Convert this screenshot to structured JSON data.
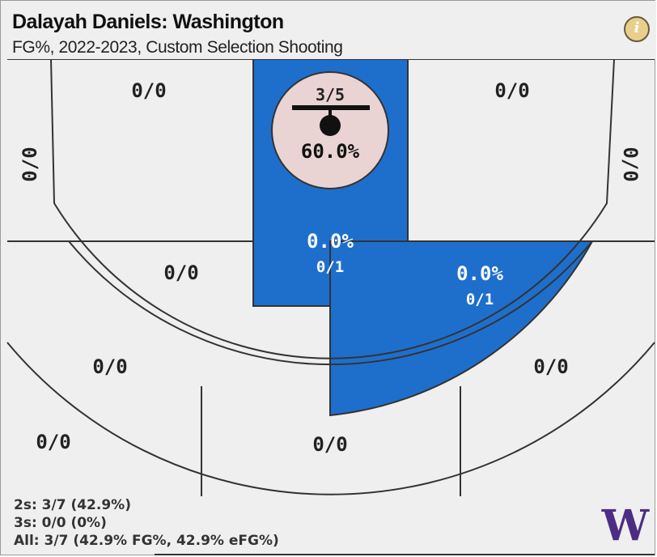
{
  "header": {
    "title": "Dalayah Daniels: Washington",
    "subtitle": "FG%, 2022-2023, Custom Selection Shooting",
    "info_icon": "info-icon"
  },
  "colors": {
    "background": "#efefef",
    "zone_hot": "#1e6fcc",
    "rim_circle": "#e9d3d3",
    "line": "#333333",
    "logo": "#4b2e83"
  },
  "chart_data": {
    "type": "heatmap",
    "title": "Dalayah Daniels: Washington",
    "subtitle": "FG%, 2022-2023, Custom Selection Shooting",
    "zones": [
      {
        "id": "left-upper-wing",
        "label": "0/0",
        "made": 0,
        "attempted": 0,
        "pct": null
      },
      {
        "id": "right-upper-wing",
        "label": "0/0",
        "made": 0,
        "attempted": 0,
        "pct": null
      },
      {
        "id": "left-corner-three",
        "label": "0/0",
        "made": 0,
        "attempted": 0,
        "pct": null
      },
      {
        "id": "right-corner-three",
        "label": "0/0",
        "made": 0,
        "attempted": 0,
        "pct": null
      },
      {
        "id": "rim",
        "label": "3/5",
        "pct_label": "60.0%",
        "made": 3,
        "attempted": 5,
        "pct": 60.0
      },
      {
        "id": "paint",
        "label": "0/1",
        "pct_label": "0.0%",
        "made": 0,
        "attempted": 1,
        "pct": 0.0
      },
      {
        "id": "right-midrange",
        "label": "0/1",
        "pct_label": "0.0%",
        "made": 0,
        "attempted": 1,
        "pct": 0.0
      },
      {
        "id": "left-midrange",
        "label": "0/0",
        "made": 0,
        "attempted": 0,
        "pct": null
      },
      {
        "id": "left-wing-three",
        "label": "0/0",
        "made": 0,
        "attempted": 0,
        "pct": null
      },
      {
        "id": "right-wing-three",
        "label": "0/0",
        "made": 0,
        "attempted": 0,
        "pct": null
      },
      {
        "id": "left-deep-three",
        "label": "0/0",
        "made": 0,
        "attempted": 0,
        "pct": null
      },
      {
        "id": "top-three",
        "label": "0/0",
        "made": 0,
        "attempted": 0,
        "pct": null
      }
    ]
  },
  "totals": {
    "twos": "2s: 3/7 (42.9%)",
    "threes": "3s: 0/0 (0%)",
    "all": "All: 3/7 (42.9% FG%, 42.9% eFG%)"
  },
  "logo": {
    "letter": "W",
    "icon": "washington-w-logo"
  }
}
